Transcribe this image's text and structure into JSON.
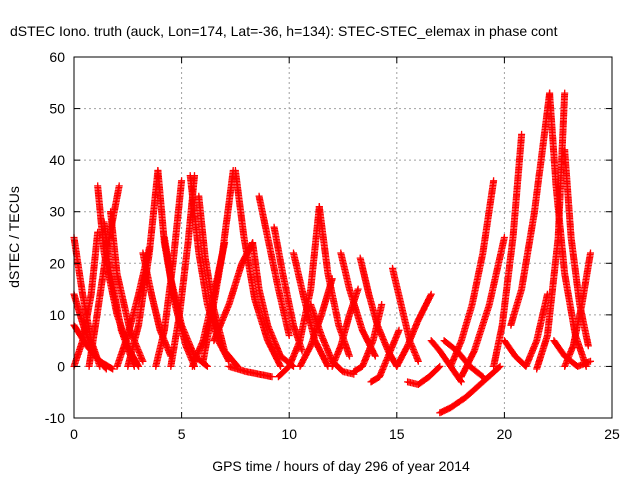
{
  "chart_data": {
    "type": "scatter",
    "title": "dSTEC Iono. truth (auck, Lon=174, Lat=-36, h=134): STEC-STEC_elemax in phase cont",
    "xlabel": "GPS time / hours of day 296 of year 2014",
    "ylabel": "dSTEC  / TECUs",
    "xlim": [
      0,
      25
    ],
    "ylim": [
      -10,
      60
    ],
    "xticks": [
      "0",
      "5",
      "10",
      "15",
      "20",
      "25"
    ],
    "yticks": [
      "-10",
      "0",
      "10",
      "20",
      "30",
      "40",
      "50",
      "60"
    ],
    "grid": true,
    "legend": "none",
    "marker": "plus",
    "color": "#ff0000",
    "series": [
      {
        "x": [
          0.0,
          0.4,
          0.8,
          1.2
        ],
        "y": [
          25,
          14,
          5,
          0
        ]
      },
      {
        "x": [
          0.0,
          0.5,
          1.0,
          1.5
        ],
        "y": [
          14,
          7,
          2,
          -0.5
        ]
      },
      {
        "x": [
          0.0,
          0.6,
          1.2,
          1.8
        ],
        "y": [
          8,
          4,
          1,
          -0.5
        ]
      },
      {
        "x": [
          0.0,
          0.4,
          0.8,
          1.1
        ],
        "y": [
          0,
          5,
          14,
          26
        ]
      },
      {
        "x": [
          0.7,
          1.0,
          1.5,
          2.1
        ],
        "y": [
          0,
          8,
          22,
          35
        ]
      },
      {
        "x": [
          1.1,
          1.4,
          2.0,
          2.6,
          3.0
        ],
        "y": [
          35,
          22,
          10,
          3,
          0
        ]
      },
      {
        "x": [
          1.4,
          1.7,
          2.2,
          2.8
        ],
        "y": [
          28,
          18,
          7,
          0
        ]
      },
      {
        "x": [
          1.7,
          2.0,
          2.6,
          3.2
        ],
        "y": [
          30,
          18,
          7,
          1
        ]
      },
      {
        "x": [
          2.0,
          2.5,
          3.0,
          3.5
        ],
        "y": [
          0,
          6,
          14,
          23
        ]
      },
      {
        "x": [
          2.5,
          3.0,
          3.5,
          3.9
        ],
        "y": [
          0,
          8,
          22,
          38
        ]
      },
      {
        "x": [
          3.2,
          3.6,
          4.0,
          4.5
        ],
        "y": [
          22,
          14,
          7,
          2
        ]
      },
      {
        "x": [
          3.9,
          4.2,
          4.7,
          5.2,
          5.6
        ],
        "y": [
          38,
          24,
          12,
          4,
          0
        ]
      },
      {
        "x": [
          4.2,
          4.5,
          5.0,
          5.6,
          6.2
        ],
        "y": [
          25,
          17,
          8,
          2,
          0
        ]
      },
      {
        "x": [
          3.8,
          4.2,
          4.6,
          4.9,
          5.0
        ],
        "y": [
          0,
          7,
          20,
          32,
          36
        ]
      },
      {
        "x": [
          4.5,
          4.9,
          5.3,
          5.6
        ],
        "y": [
          0,
          10,
          24,
          37
        ]
      },
      {
        "x": [
          5.4,
          5.8,
          6.2,
          6.7,
          7.2
        ],
        "y": [
          37,
          22,
          12,
          5,
          1
        ]
      },
      {
        "x": [
          5.8,
          6.1,
          6.5,
          7.0,
          7.6
        ],
        "y": [
          33,
          21,
          11,
          3,
          0
        ]
      },
      {
        "x": [
          5.5,
          6.0,
          6.5,
          7.0
        ],
        "y": [
          0,
          5,
          14,
          24
        ]
      },
      {
        "x": [
          6.0,
          6.4,
          6.9,
          7.4
        ],
        "y": [
          1,
          10,
          22,
          38
        ]
      },
      {
        "x": [
          6.5,
          7.2,
          7.8,
          8.3
        ],
        "y": [
          5,
          12,
          20,
          24
        ]
      },
      {
        "x": [
          7.5,
          7.9,
          8.4,
          9.0,
          9.6
        ],
        "y": [
          38,
          25,
          13,
          5,
          0
        ]
      },
      {
        "x": [
          8.3,
          8.6,
          9.0,
          9.6,
          10.2
        ],
        "y": [
          24,
          15,
          8,
          2,
          0
        ]
      },
      {
        "x": [
          7.2,
          8.0,
          8.6,
          9.2
        ],
        "y": [
          0,
          -1,
          -1.5,
          -2
        ]
      },
      {
        "x": [
          8.6,
          9.0,
          9.5,
          10.0
        ],
        "y": [
          33,
          25,
          15,
          6
        ]
      },
      {
        "x": [
          9.3,
          9.7,
          10.2,
          10.6
        ],
        "y": [
          27,
          18,
          8,
          3
        ]
      },
      {
        "x": [
          9.5,
          10.0,
          10.5,
          11.0,
          11.4
        ],
        "y": [
          -2,
          0,
          5,
          15,
          31
        ]
      },
      {
        "x": [
          10.2,
          10.7,
          11.2,
          11.8
        ],
        "y": [
          22,
          13,
          5,
          0
        ]
      },
      {
        "x": [
          11.4,
          11.8,
          12.3,
          12.8
        ],
        "y": [
          31,
          18,
          8,
          2
        ]
      },
      {
        "x": [
          10.5,
          11.0,
          11.5,
          12.0
        ],
        "y": [
          0,
          4,
          10,
          17
        ]
      },
      {
        "x": [
          11.0,
          11.5,
          12.0,
          12.5,
          13.0
        ],
        "y": [
          12,
          6,
          1,
          -1,
          -1.5
        ]
      },
      {
        "x": [
          12.4,
          12.8,
          13.4,
          14.0
        ],
        "y": [
          22,
          15,
          7,
          2
        ]
      },
      {
        "x": [
          12.0,
          12.4,
          12.8,
          13.2
        ],
        "y": [
          0,
          4,
          10,
          15
        ]
      },
      {
        "x": [
          13.0,
          13.4,
          13.9,
          14.3
        ],
        "y": [
          -1,
          0,
          5,
          12
        ]
      },
      {
        "x": [
          13.3,
          13.7,
          14.1,
          14.6,
          15.0
        ],
        "y": [
          21,
          14,
          8,
          3,
          0
        ]
      },
      {
        "x": [
          13.8,
          14.2,
          14.6,
          15.1
        ],
        "y": [
          -3,
          -2,
          2,
          7
        ]
      },
      {
        "x": [
          14.8,
          15.2,
          15.6,
          16.0
        ],
        "y": [
          19,
          12,
          5,
          1
        ]
      },
      {
        "x": [
          15.0,
          15.5,
          16.0,
          16.6
        ],
        "y": [
          0,
          4,
          9,
          14
        ]
      },
      {
        "x": [
          15.5,
          16.0,
          16.5,
          17.0
        ],
        "y": [
          -3,
          -3.5,
          -2,
          0
        ]
      },
      {
        "x": [
          16.6,
          17.0,
          17.5,
          18.0
        ],
        "y": [
          5,
          3,
          0,
          -3
        ]
      },
      {
        "x": [
          17.0,
          17.5,
          18.2,
          19.0,
          19.8
        ],
        "y": [
          -9,
          -8,
          -6,
          -3,
          0
        ]
      },
      {
        "x": [
          17.2,
          17.8,
          18.4,
          19.0
        ],
        "y": [
          5,
          3,
          0,
          -2
        ]
      },
      {
        "x": [
          17.5,
          18.0,
          18.5,
          19.0,
          19.5
        ],
        "y": [
          0,
          5,
          12,
          22,
          36
        ]
      },
      {
        "x": [
          18.0,
          18.6,
          19.3,
          20.0
        ],
        "y": [
          -2,
          3,
          12,
          25
        ]
      },
      {
        "x": [
          19.5,
          19.9,
          20.4,
          20.8
        ],
        "y": [
          0,
          8,
          25,
          45
        ]
      },
      {
        "x": [
          20.0,
          20.5,
          21.0,
          21.5,
          22.0
        ],
        "y": [
          5,
          2,
          0,
          5,
          14
        ]
      },
      {
        "x": [
          20.3,
          20.8,
          21.4,
          22.1
        ],
        "y": [
          8,
          15,
          30,
          53
        ]
      },
      {
        "x": [
          22.1,
          22.4,
          22.8,
          23.3,
          23.8
        ],
        "y": [
          53,
          35,
          18,
          6,
          0
        ]
      },
      {
        "x": [
          21.5,
          22.0,
          22.5,
          22.8
        ],
        "y": [
          -0.5,
          6,
          25,
          53
        ]
      },
      {
        "x": [
          22.8,
          23.1,
          23.5,
          23.9
        ],
        "y": [
          42,
          25,
          12,
          4
        ]
      },
      {
        "x": [
          22.3,
          22.8,
          23.4,
          24.0
        ],
        "y": [
          5,
          2,
          0,
          1
        ]
      },
      {
        "x": [
          22.8,
          23.2,
          23.6,
          24.0
        ],
        "y": [
          0,
          4,
          12,
          22
        ]
      }
    ]
  }
}
